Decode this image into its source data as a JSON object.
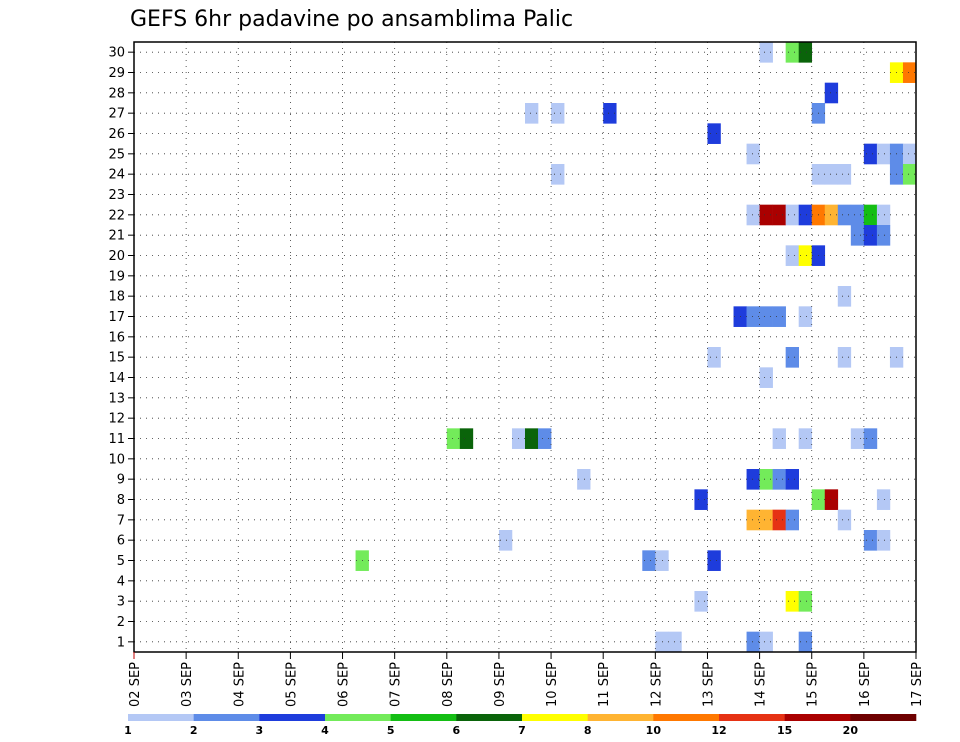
{
  "chart_data": {
    "type": "heatmap",
    "title": "GEFS 6hr padavine po ansamblima Palic",
    "xlabel": "",
    "ylabel": "",
    "x_tick_labels": [
      "02 SEP",
      "03 SEP",
      "04 SEP",
      "05 SEP",
      "06 SEP",
      "07 SEP",
      "08 SEP",
      "09 SEP",
      "10 SEP",
      "11 SEP",
      "12 SEP",
      "13 SEP",
      "14 SEP",
      "15 SEP",
      "16 SEP",
      "17 SEP"
    ],
    "x_unit": "6-hour steps from 02 SEP 00Z",
    "xlim": [
      0,
      60
    ],
    "y_tick_labels": [
      "1",
      "2",
      "3",
      "4",
      "5",
      "6",
      "7",
      "8",
      "9",
      "10",
      "11",
      "12",
      "13",
      "14",
      "15",
      "16",
      "17",
      "18",
      "19",
      "20",
      "21",
      "22",
      "23",
      "24",
      "25",
      "26",
      "27",
      "28",
      "29",
      "30"
    ],
    "ylim": [
      0,
      30
    ],
    "grid": true,
    "colorbar": {
      "labels": [
        "1",
        "2",
        "3",
        "4",
        "5",
        "6",
        "7",
        "8",
        "10",
        "12",
        "15",
        "20"
      ],
      "colors": [
        "#b4c8f5",
        "#5e8ce8",
        "#1e3cdc",
        "#73eb5a",
        "#14be14",
        "#0a640a",
        "#ffff00",
        "#ffb432",
        "#ff7800",
        "#e63214",
        "#aa0000",
        "#6e0000"
      ]
    },
    "cells": [
      {
        "member": 30,
        "step": 48,
        "level": 1
      },
      {
        "member": 30,
        "step": 50,
        "level": 4
      },
      {
        "member": 30,
        "step": 51,
        "level": 6
      },
      {
        "member": 29,
        "step": 58,
        "level": 7
      },
      {
        "member": 29,
        "step": 59,
        "level": 9
      },
      {
        "member": 28,
        "step": 53,
        "level": 3
      },
      {
        "member": 27,
        "step": 30,
        "level": 1
      },
      {
        "member": 27,
        "step": 32,
        "level": 1
      },
      {
        "member": 27,
        "step": 36,
        "level": 3
      },
      {
        "member": 27,
        "step": 52,
        "level": 2
      },
      {
        "member": 26,
        "step": 44,
        "level": 3
      },
      {
        "member": 25,
        "step": 47,
        "level": 1
      },
      {
        "member": 25,
        "step": 56,
        "level": 3
      },
      {
        "member": 25,
        "step": 57,
        "level": 1
      },
      {
        "member": 25,
        "step": 58,
        "level": 2
      },
      {
        "member": 25,
        "step": 59,
        "level": 1
      },
      {
        "member": 24,
        "step": 32,
        "level": 1
      },
      {
        "member": 24,
        "step": 52,
        "level": 1
      },
      {
        "member": 24,
        "step": 53,
        "level": 1
      },
      {
        "member": 24,
        "step": 54,
        "level": 1
      },
      {
        "member": 24,
        "step": 58,
        "level": 2
      },
      {
        "member": 24,
        "step": 59,
        "level": 4
      },
      {
        "member": 22,
        "step": 47,
        "level": 1
      },
      {
        "member": 22,
        "step": 48,
        "level": 11
      },
      {
        "member": 22,
        "step": 49,
        "level": 11
      },
      {
        "member": 22,
        "step": 50,
        "level": 1
      },
      {
        "member": 22,
        "step": 51,
        "level": 3
      },
      {
        "member": 22,
        "step": 52,
        "level": 9
      },
      {
        "member": 22,
        "step": 53,
        "level": 8
      },
      {
        "member": 22,
        "step": 54,
        "level": 2
      },
      {
        "member": 22,
        "step": 55,
        "level": 2
      },
      {
        "member": 22,
        "step": 56,
        "level": 5
      },
      {
        "member": 22,
        "step": 57,
        "level": 1
      },
      {
        "member": 21,
        "step": 55,
        "level": 2
      },
      {
        "member": 21,
        "step": 56,
        "level": 3
      },
      {
        "member": 21,
        "step": 57,
        "level": 2
      },
      {
        "member": 20,
        "step": 50,
        "level": 1
      },
      {
        "member": 20,
        "step": 51,
        "level": 7
      },
      {
        "member": 20,
        "step": 52,
        "level": 3
      },
      {
        "member": 18,
        "step": 54,
        "level": 1
      },
      {
        "member": 17,
        "step": 46,
        "level": 3
      },
      {
        "member": 17,
        "step": 47,
        "level": 2
      },
      {
        "member": 17,
        "step": 48,
        "level": 2
      },
      {
        "member": 17,
        "step": 49,
        "level": 2
      },
      {
        "member": 17,
        "step": 51,
        "level": 1
      },
      {
        "member": 15,
        "step": 44,
        "level": 1
      },
      {
        "member": 15,
        "step": 50,
        "level": 2
      },
      {
        "member": 15,
        "step": 54,
        "level": 1
      },
      {
        "member": 15,
        "step": 58,
        "level": 1
      },
      {
        "member": 14,
        "step": 48,
        "level": 1
      },
      {
        "member": 11,
        "step": 24,
        "level": 4
      },
      {
        "member": 11,
        "step": 25,
        "level": 6
      },
      {
        "member": 11,
        "step": 29,
        "level": 1
      },
      {
        "member": 11,
        "step": 30,
        "level": 6
      },
      {
        "member": 11,
        "step": 31,
        "level": 2
      },
      {
        "member": 11,
        "step": 49,
        "level": 1
      },
      {
        "member": 11,
        "step": 51,
        "level": 1
      },
      {
        "member": 11,
        "step": 55,
        "level": 1
      },
      {
        "member": 11,
        "step": 56,
        "level": 2
      },
      {
        "member": 9,
        "step": 34,
        "level": 1
      },
      {
        "member": 9,
        "step": 47,
        "level": 3
      },
      {
        "member": 9,
        "step": 48,
        "level": 4
      },
      {
        "member": 9,
        "step": 49,
        "level": 2
      },
      {
        "member": 9,
        "step": 50,
        "level": 3
      },
      {
        "member": 8,
        "step": 43,
        "level": 3
      },
      {
        "member": 8,
        "step": 52,
        "level": 4
      },
      {
        "member": 8,
        "step": 53,
        "level": 11
      },
      {
        "member": 8,
        "step": 57,
        "level": 1
      },
      {
        "member": 7,
        "step": 47,
        "level": 8
      },
      {
        "member": 7,
        "step": 48,
        "level": 8
      },
      {
        "member": 7,
        "step": 49,
        "level": 10
      },
      {
        "member": 7,
        "step": 50,
        "level": 2
      },
      {
        "member": 7,
        "step": 54,
        "level": 1
      },
      {
        "member": 6,
        "step": 28,
        "level": 1
      },
      {
        "member": 6,
        "step": 56,
        "level": 2
      },
      {
        "member": 6,
        "step": 57,
        "level": 1
      },
      {
        "member": 5,
        "step": 17,
        "level": 4
      },
      {
        "member": 5,
        "step": 39,
        "level": 2
      },
      {
        "member": 5,
        "step": 40,
        "level": 1
      },
      {
        "member": 5,
        "step": 44,
        "level": 3
      },
      {
        "member": 3,
        "step": 43,
        "level": 1
      },
      {
        "member": 3,
        "step": 50,
        "level": 7
      },
      {
        "member": 3,
        "step": 51,
        "level": 4
      },
      {
        "member": 1,
        "step": 40,
        "level": 1
      },
      {
        "member": 1,
        "step": 41,
        "level": 1
      },
      {
        "member": 1,
        "step": 47,
        "level": 2
      },
      {
        "member": 1,
        "step": 48,
        "level": 1
      },
      {
        "member": 1,
        "step": 51,
        "level": 2
      }
    ]
  }
}
